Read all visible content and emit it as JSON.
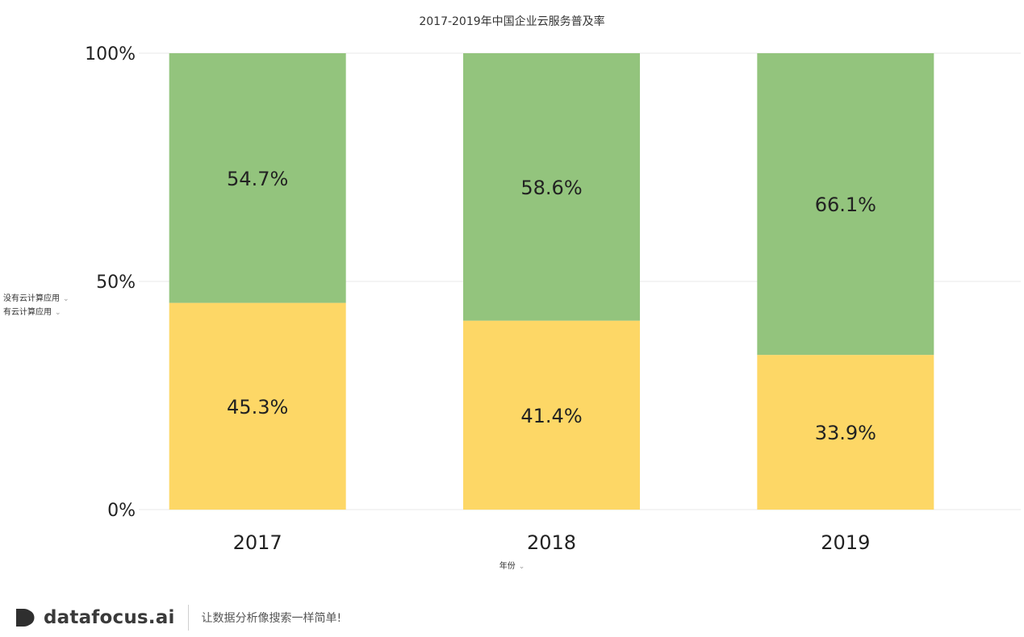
{
  "title": "2017-2019年中国企业云服务普及率",
  "legend": [
    {
      "label": "没有云计算应用",
      "chevron": "chevron-down-icon"
    },
    {
      "label": "有云计算应用",
      "chevron": "chevron-down-icon"
    }
  ],
  "xaxis_title": "年份",
  "footer": {
    "brand": "datafocus.ai",
    "slogan": "让数据分析像搜索一样简单!"
  },
  "colors": {
    "without_cloud": "#93C47D",
    "with_cloud": "#FDD766",
    "grid": "#e8e8e8",
    "text": "#222222"
  },
  "chart_data": {
    "type": "bar",
    "stacked": true,
    "percent": true,
    "title": "2017-2019年中国企业云服务普及率",
    "xlabel": "年份",
    "ylabel": "",
    "categories": [
      "2017",
      "2018",
      "2019"
    ],
    "ylim": [
      0,
      100
    ],
    "yticks": [
      "0%",
      "50%",
      "100%"
    ],
    "series": [
      {
        "name": "有云计算应用",
        "values": [
          45.3,
          41.4,
          33.9
        ],
        "labels": [
          "45.3%",
          "41.4%",
          "33.9%"
        ],
        "color": "#FDD766"
      },
      {
        "name": "没有云计算应用",
        "values": [
          54.7,
          58.6,
          66.1
        ],
        "labels": [
          "54.7%",
          "58.6%",
          "66.1%"
        ],
        "color": "#93C47D"
      }
    ],
    "grid": true,
    "legend_position": "left"
  }
}
